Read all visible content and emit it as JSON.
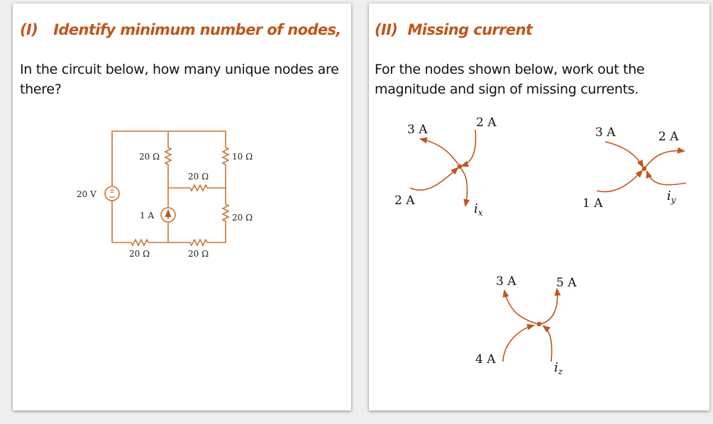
{
  "left_panel": {
    "number": "(I)",
    "title": "Identify minimum number of nodes,",
    "question": "In the circuit below, how many unique nodes are there?",
    "circuit": {
      "voltage_source": "20 V",
      "current_source": "1 A",
      "resistors": [
        "20 Ω",
        "10 Ω",
        "20 Ω",
        "20 Ω",
        "20 Ω",
        "20 Ω"
      ]
    }
  },
  "right_panel": {
    "number": "(II)",
    "title": "Missing current",
    "question": "For the nodes shown below, work out the magnitude and sign of missing currents.",
    "nodes": [
      {
        "labels": [
          "3 A",
          "2 A",
          "2 A"
        ],
        "unknown": "i",
        "unknown_sub": "x"
      },
      {
        "labels": [
          "3 A",
          "2 A",
          "1 A"
        ],
        "unknown": "i",
        "unknown_sub": "y"
      },
      {
        "labels": [
          "3 A",
          "5 A",
          "4 A"
        ],
        "unknown": "i",
        "unknown_sub": "z"
      }
    ]
  },
  "colors": {
    "accent": "#c0561b",
    "wire": "#c87533"
  }
}
